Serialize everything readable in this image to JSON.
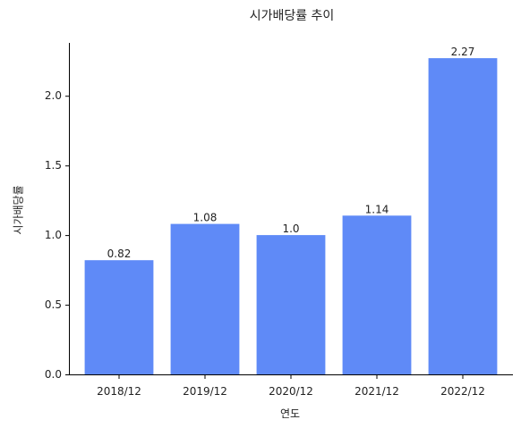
{
  "chart_data": {
    "type": "bar",
    "title": "시가배당률 추이",
    "xlabel": "연도",
    "ylabel": "시가배당률",
    "categories": [
      "2018/12",
      "2019/12",
      "2020/12",
      "2021/12",
      "2022/12"
    ],
    "values": [
      0.82,
      1.08,
      1.0,
      1.14,
      2.27
    ],
    "value_labels": [
      "0.82",
      "1.08",
      "1.0",
      "1.14",
      "2.27"
    ],
    "ylim": [
      0,
      2.38
    ],
    "yticks": [
      0.0,
      0.5,
      1.0,
      1.5,
      2.0
    ],
    "ytick_labels": [
      "0.0",
      "0.5",
      "1.0",
      "1.5",
      "2.0"
    ],
    "bar_color": "#5f8af7",
    "grid": false,
    "legend": "none"
  }
}
